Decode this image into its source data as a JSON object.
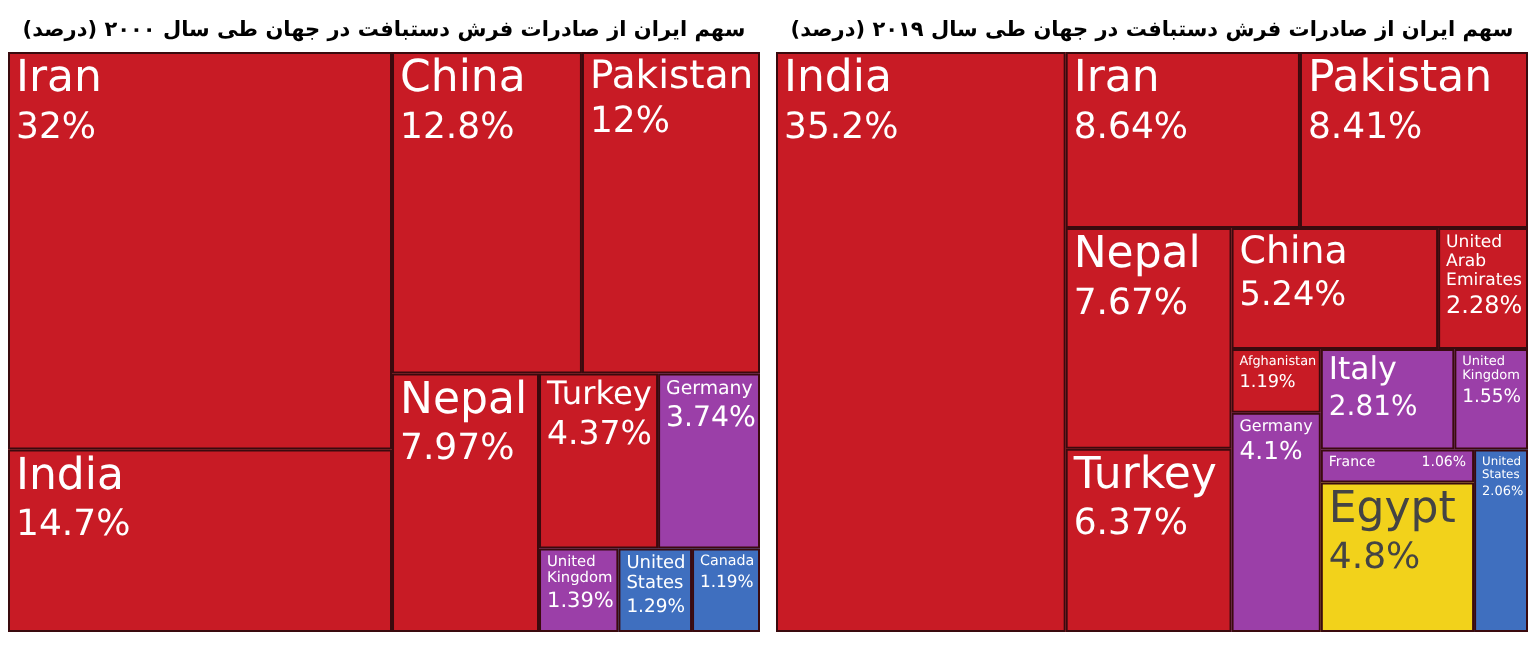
{
  "chart_data": [
    {
      "type": "other",
      "title": "سهم ایران از صادرات فرش دستبافت در جهان طی سال ۲۰۰۰ (درصد)",
      "categories": [
        "Iran",
        "India",
        "China",
        "Pakistan",
        "Nepal",
        "Turkey",
        "Germany",
        "United Kingdom",
        "United States",
        "Canada"
      ],
      "values": [
        32,
        14.7,
        12.8,
        12,
        7.97,
        4.37,
        3.74,
        1.39,
        1.29,
        1.19
      ],
      "value_labels": [
        "32%",
        "14.7%",
        "12.8%",
        "12%",
        "7.97%",
        "4.37%",
        "3.74%",
        "1.39%",
        "1.29%",
        "1.19%"
      ],
      "colors": [
        "#c81b25",
        "#c81b25",
        "#c81b25",
        "#c81b25",
        "#c81b25",
        "#c81b25",
        "#9b3fa8",
        "#9b3fa8",
        "#3f6fbf",
        "#3f6fbf"
      ]
    },
    {
      "type": "other",
      "title": "سهم ایران از صادرات فرش دستبافت در جهان طی سال ۲۰۱۹ (درصد)",
      "categories": [
        "India",
        "Iran",
        "Pakistan",
        "Nepal",
        "Turkey",
        "China",
        "United Arab Emirates",
        "Afghanistan",
        "Germany",
        "Italy",
        "United Kingdom",
        "France",
        "Egypt",
        "United States"
      ],
      "values": [
        35.2,
        8.64,
        8.41,
        7.67,
        6.37,
        5.24,
        2.28,
        1.19,
        4.1,
        2.81,
        1.55,
        1.06,
        4.8,
        2.06
      ],
      "value_labels": [
        "35.2%",
        "8.64%",
        "8.41%",
        "7.67%",
        "6.37%",
        "5.24%",
        "2.28%",
        "1.19%",
        "4.1%",
        "2.81%",
        "1.55%",
        "1.06%",
        "4.8%",
        "2.06%"
      ],
      "colors": [
        "#c81b25",
        "#c81b25",
        "#c81b25",
        "#c81b25",
        "#c81b25",
        "#c81b25",
        "#c81b25",
        "#c81b25",
        "#9b3fa8",
        "#9b3fa8",
        "#9b3fa8",
        "#9b3fa8",
        "#f2d21b",
        "#3f6fbf"
      ]
    }
  ]
}
